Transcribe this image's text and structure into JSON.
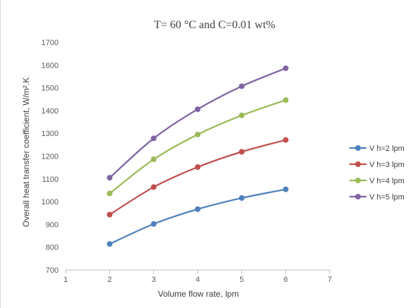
{
  "chart_data": {
    "type": "line",
    "title": "T= 60 °C and C=0.01  wt%",
    "xlabel": "Volume flow rate, lpm",
    "ylabel": "Overall heat transfer coefficient, W/m².K",
    "xlim": [
      1,
      7
    ],
    "ylim": [
      700,
      1700
    ],
    "xticks": [
      1,
      2,
      3,
      4,
      5,
      6,
      7
    ],
    "yticks": [
      700,
      800,
      900,
      1000,
      1100,
      1200,
      1300,
      1400,
      1500,
      1600,
      1700
    ],
    "grid": false,
    "legend_position": "right",
    "x": [
      2,
      3,
      4,
      5,
      6
    ],
    "series": [
      {
        "name": "V h=2 lpm",
        "color": "#4f81bd",
        "values": [
          814,
          902,
          967,
          1016,
          1054
        ]
      },
      {
        "name": "V h=3 lpm",
        "color": "#c0504d",
        "values": [
          943,
          1064,
          1152,
          1219,
          1271
        ]
      },
      {
        "name": "V h=4 lpm",
        "color": "#9bbb59",
        "values": [
          1036,
          1186,
          1295,
          1379,
          1446
        ]
      },
      {
        "name": "V h=5 lpm",
        "color": "#8064a2",
        "values": [
          1105,
          1278,
          1406,
          1507,
          1586
        ]
      }
    ]
  }
}
